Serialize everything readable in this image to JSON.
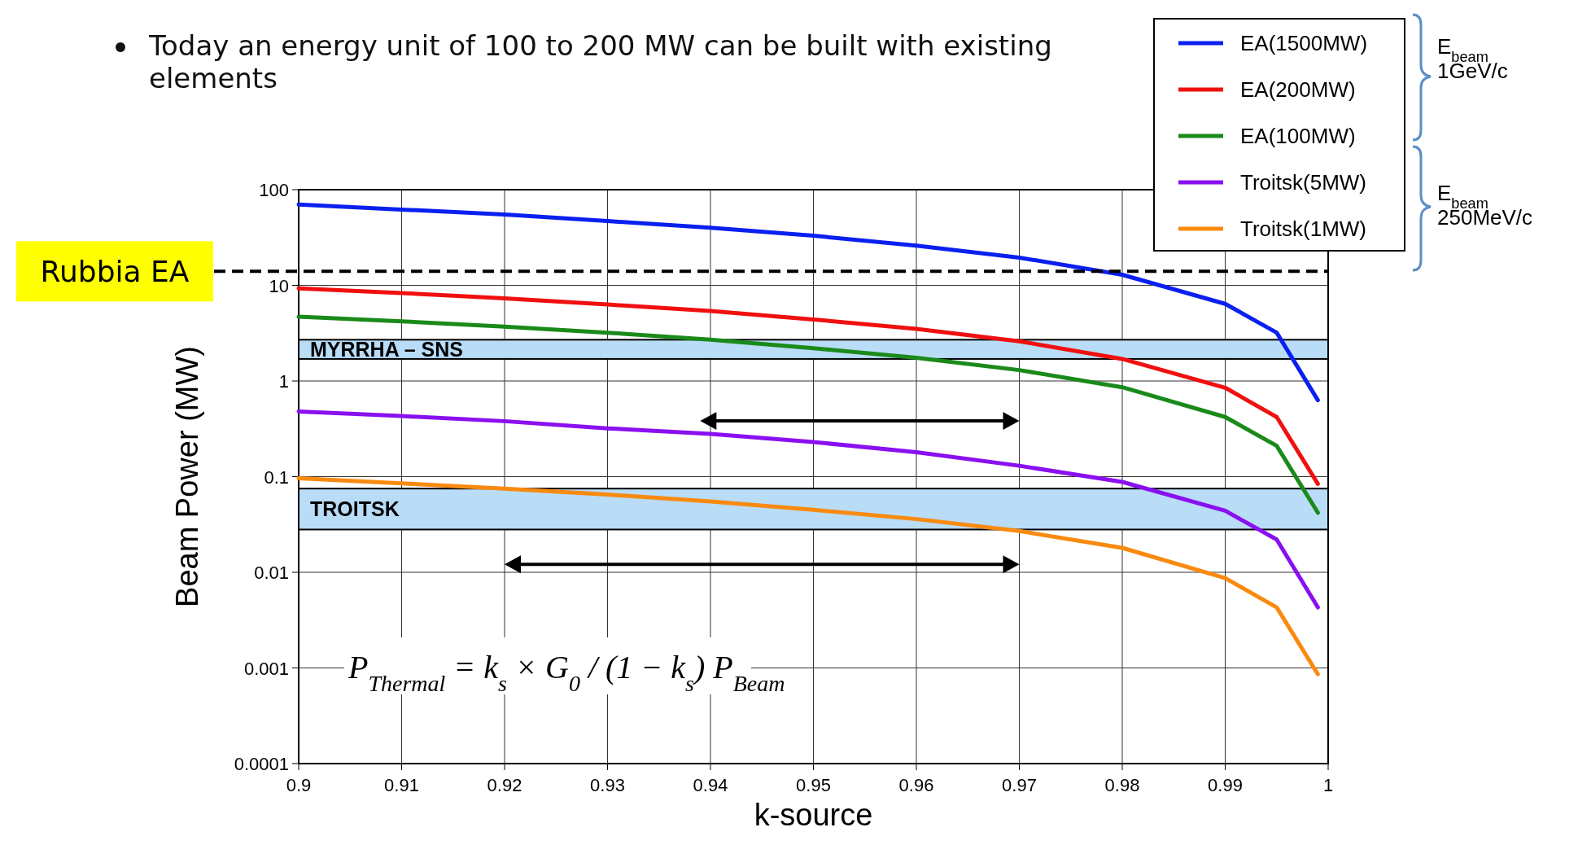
{
  "chart_data": {
    "type": "line",
    "title": "Today an energy unit of 100 to 200 MW can be built with existing elements",
    "xlabel": "k-source",
    "ylabel": "Beam Power (MW)",
    "log": "y",
    "x": [
      0.9,
      0.91,
      0.92,
      0.93,
      0.94,
      0.95,
      0.96,
      0.97,
      0.98,
      0.99,
      0.995,
      0.999
    ],
    "series": [
      {
        "name": "EA(1500MW)",
        "color": "#0a20f0",
        "values": [
          70,
          62,
          55,
          47,
          40,
          33,
          26,
          19.5,
          12.9,
          6.4,
          3.2,
          0.63
        ]
      },
      {
        "name": "EA(200MW)",
        "color": "#f01010",
        "values": [
          9.3,
          8.3,
          7.3,
          6.3,
          5.4,
          4.4,
          3.5,
          2.6,
          1.7,
          0.85,
          0.42,
          0.084
        ]
      },
      {
        "name": "EA(100MW)",
        "color": "#1a8a1a",
        "values": [
          4.7,
          4.2,
          3.7,
          3.2,
          2.7,
          2.2,
          1.75,
          1.3,
          0.86,
          0.42,
          0.21,
          0.042
        ]
      },
      {
        "name": "Troitsk(5MW)",
        "color": "#8a10f0",
        "values": [
          0.48,
          0.43,
          0.38,
          0.32,
          0.28,
          0.23,
          0.18,
          0.13,
          0.088,
          0.044,
          0.022,
          0.0043
        ]
      },
      {
        "name": "Troitsk(1MW)",
        "color": "#f98a10",
        "values": [
          0.096,
          0.085,
          0.075,
          0.065,
          0.055,
          0.045,
          0.036,
          0.027,
          0.018,
          0.0087,
          0.0043,
          0.00086
        ]
      }
    ],
    "xlim": [
      0.9,
      1
    ],
    "xticks": [
      0.9,
      0.91,
      0.92,
      0.93,
      0.94,
      0.95,
      0.96,
      0.97,
      0.98,
      0.99,
      1
    ],
    "ylim": [
      0.0001,
      100
    ],
    "yticks": [
      0.0001,
      0.001,
      0.01,
      0.1,
      1,
      10,
      100
    ],
    "grid": true,
    "legend": "top right",
    "line_style": "solid",
    "marker": "none",
    "ref_lines": [
      {
        "axis": "y",
        "value": 14,
        "label": "Rubbia EA",
        "color": "#000000",
        "line_style": "dashed"
      }
    ],
    "bands": [
      {
        "axis": "y",
        "from": 1.7,
        "to": 2.7,
        "label": "MYRRHA – SNS",
        "color": "#b9dcf7"
      },
      {
        "axis": "y",
        "from": 0.028,
        "to": 0.075,
        "label": "TROITSK",
        "color": "#b9dcf7"
      }
    ],
    "annotations": [
      "P$_{Thermal}$ = k$_{s}$ × G$_{0}$ / (1 − k$_{s}$) P$_{Beam}$",
      "E$_{beam}$ 1GeV/c",
      "E$_{beam}$ 250MeV/c"
    ]
  }
}
